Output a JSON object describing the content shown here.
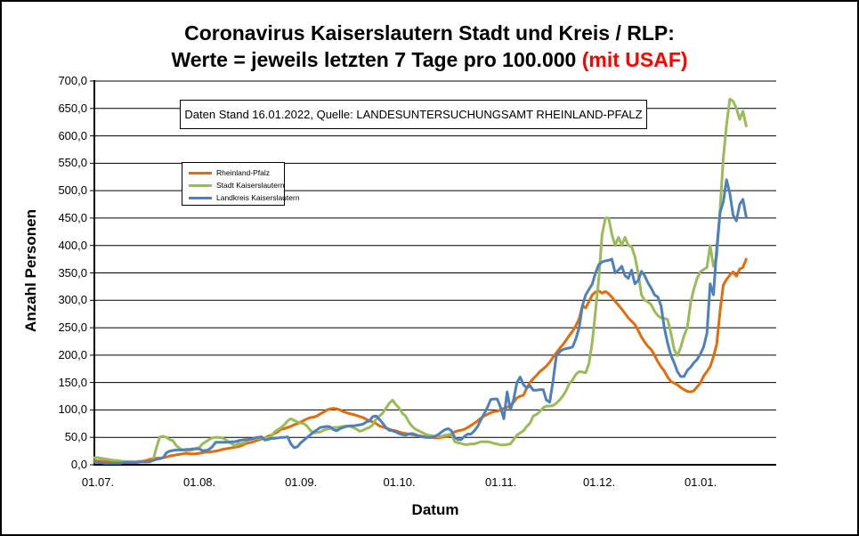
{
  "title": {
    "line1": "Coronavirus Kaiserslautern Stadt und Kreis / RLP:",
    "line2_main": "Werte = jeweils letzten 7 Tage pro 100.000 ",
    "line2_highlight": "(mit USAF)"
  },
  "annotation": {
    "text": "Daten Stand 16.01.2022, Quelle: LANDESUNTERSUCHUNGSAMT RHEINLAND-PFALZ"
  },
  "y_axis": {
    "title": "Anzahl Personen",
    "tick_labels": [
      "0,0",
      "50,0",
      "100,0",
      "150,0",
      "200,0",
      "250,0",
      "300,0",
      "350,0",
      "400,0",
      "450,0",
      "500,0",
      "550,0",
      "600,0",
      "650,0",
      "700,0"
    ]
  },
  "x_axis": {
    "title": "Datum",
    "tick_labels": [
      "01.07.",
      "01.08.",
      "01.09.",
      "01.10.",
      "01.11.",
      "01.12.",
      "01.01."
    ]
  },
  "legend": {
    "items": [
      {
        "label": "Rheinland-Pfalz",
        "color": "#E36C0A"
      },
      {
        "label": "Stadt Kaiserslautern",
        "color": "#9BBB59"
      },
      {
        "label": "Landkreis Kaiserslautern",
        "color": "#4E80BC"
      }
    ]
  },
  "chart_data": {
    "type": "line",
    "title": "Coronavirus Kaiserslautern Stadt und Kreis / RLP: Werte = jeweils letzten 7 Tage pro 100.000 (mit USAF)",
    "ylabel": "Anzahl Personen",
    "xlabel": "Datum",
    "ylim": [
      0,
      700
    ],
    "y_tick_step": 50,
    "grid": "horizontal",
    "legend_position": "inside-top-left",
    "x_unit": "days since 01.07.2021 (daily 7-day incidence per 100000)",
    "x_start_date": "01.07.2021",
    "x_end_date": "16.01.2022",
    "x_tick_days": [
      0,
      31,
      62,
      92,
      123,
      153,
      184
    ],
    "x_tick_labels": [
      "01.07.",
      "01.08.",
      "01.09.",
      "01.10.",
      "01.11.",
      "01.12.",
      "01.01."
    ],
    "series": [
      {
        "name": "Rheinland-Pfalz",
        "color": "#E36C0A",
        "values": [
          8,
          7,
          7,
          6,
          6,
          5,
          5,
          5,
          5,
          5,
          5,
          5,
          5,
          6,
          6,
          7,
          8,
          10,
          11,
          12,
          12,
          13,
          14,
          16,
          17,
          18,
          19,
          20,
          21,
          20,
          20,
          20,
          21,
          22,
          23,
          23,
          24,
          25,
          26,
          28,
          29,
          30,
          31,
          32,
          33,
          35,
          38,
          40,
          41,
          43,
          45,
          47,
          49,
          52,
          54,
          57,
          60,
          65,
          66,
          68,
          70,
          73,
          75,
          78,
          81,
          84,
          86,
          87,
          89,
          93,
          96,
          100,
          102,
          103,
          102,
          100,
          97,
          95,
          93,
          92,
          90,
          88,
          86,
          83,
          80,
          78,
          75,
          71,
          69,
          67,
          65,
          63,
          62,
          60,
          58,
          57,
          56,
          55,
          54,
          53,
          52,
          51,
          50,
          50,
          49,
          49,
          50,
          51,
          52,
          55,
          60,
          62,
          63,
          65,
          68,
          72,
          76,
          80,
          85,
          89,
          92,
          95,
          97,
          98,
          100,
          103,
          105,
          108,
          114,
          122,
          125,
          127,
          140,
          150,
          157,
          163,
          170,
          175,
          180,
          187,
          196,
          204,
          212,
          219,
          227,
          236,
          244,
          254,
          266,
          290,
          286,
          298,
          310,
          315,
          317,
          313,
          316,
          312,
          306,
          298,
          291,
          284,
          276,
          268,
          262,
          256,
          245,
          233,
          224,
          216,
          210,
          200,
          188,
          179,
          171,
          160,
          152,
          149,
          146,
          141,
          137,
          134,
          133,
          135,
          142,
          149,
          162,
          170,
          179,
          197,
          220,
          280,
          328,
          338,
          346,
          352,
          344,
          357,
          360,
          375
        ]
      },
      {
        "name": "Stadt Kaiserslautern",
        "color": "#9BBB59",
        "values": [
          13,
          13,
          12,
          11,
          10,
          9,
          8,
          8,
          7,
          6,
          6,
          6,
          6,
          5,
          5,
          6,
          5,
          5,
          10,
          32,
          51,
          52,
          50,
          46,
          44,
          35,
          30,
          27,
          26,
          26,
          27,
          30,
          31,
          38,
          42,
          46,
          49,
          50,
          50,
          49,
          46,
          42,
          38,
          35,
          39,
          39,
          41,
          46,
          47,
          48,
          48,
          49,
          49,
          49,
          52,
          60,
          64,
          68,
          73,
          80,
          84,
          81,
          78,
          76,
          75,
          70,
          62,
          58,
          59,
          60,
          63,
          65,
          66,
          68,
          68,
          69,
          70,
          71,
          70,
          68,
          65,
          61,
          63,
          66,
          68,
          73,
          83,
          89,
          94,
          103,
          112,
          118,
          110,
          104,
          94,
          89,
          78,
          70,
          65,
          62,
          59,
          56,
          54,
          53,
          52,
          51,
          52,
          54,
          55,
          56,
          42,
          40,
          39,
          37,
          37,
          38,
          38,
          40,
          42,
          42,
          42,
          41,
          39,
          38,
          36,
          36,
          37,
          38,
          46,
          54,
          58,
          62,
          70,
          76,
          89,
          92,
          97,
          104,
          107,
          107,
          108,
          112,
          118,
          125,
          135,
          148,
          155,
          165,
          170,
          169,
          168,
          185,
          225,
          280,
          340,
          420,
          450,
          450,
          420,
          400,
          415,
          400,
          415,
          400,
          398,
          380,
          350,
          310,
          300,
          297,
          292,
          280,
          272,
          268,
          267,
          265,
          240,
          210,
          199,
          214,
          235,
          250,
          295,
          320,
          340,
          352,
          356,
          360,
          400,
          362,
          380,
          465,
          560,
          620,
          667,
          663,
          650,
          630,
          645,
          618
        ]
      },
      {
        "name": "Landkreis Kaiserslautern",
        "color": "#4E80BC",
        "values": [
          5,
          4,
          4,
          3,
          3,
          3,
          3,
          3,
          3,
          4,
          4,
          4,
          4,
          4,
          5,
          5,
          5,
          6,
          8,
          10,
          11,
          13,
          22,
          25,
          26,
          27,
          27,
          27,
          28,
          28,
          29,
          29,
          29,
          26,
          26,
          28,
          33,
          41,
          41,
          41,
          41,
          41,
          42,
          42,
          44,
          45,
          46,
          46,
          47,
          49,
          50,
          51,
          45,
          46,
          48,
          48,
          49,
          50,
          50,
          51,
          38,
          31,
          33,
          40,
          45,
          50,
          55,
          60,
          64,
          68,
          69,
          70,
          69,
          64,
          62,
          66,
          68,
          70,
          71,
          71,
          72,
          73,
          74,
          78,
          80,
          88,
          89,
          83,
          76,
          68,
          63,
          62,
          60,
          57,
          55,
          54,
          56,
          57,
          55,
          53,
          51,
          50,
          50,
          50,
          52,
          55,
          60,
          64,
          66,
          62,
          50,
          46,
          46,
          52,
          56,
          56,
          62,
          70,
          82,
          93,
          105,
          119,
          120,
          120,
          105,
          84,
          133,
          100,
          119,
          150,
          160,
          146,
          140,
          144,
          136,
          136,
          137,
          137,
          118,
          114,
          152,
          198,
          206,
          210,
          212,
          213,
          215,
          230,
          250,
          290,
          310,
          320,
          330,
          350,
          365,
          370,
          372,
          373,
          375,
          350,
          355,
          362,
          345,
          340,
          355,
          330,
          336,
          353,
          345,
          332,
          322,
          310,
          306,
          290,
          250,
          222,
          200,
          186,
          170,
          161,
          161,
          172,
          178,
          186,
          192,
          202,
          215,
          240,
          330,
          310,
          395,
          460,
          480,
          520,
          495,
          455,
          445,
          475,
          484,
          452
        ]
      }
    ]
  }
}
